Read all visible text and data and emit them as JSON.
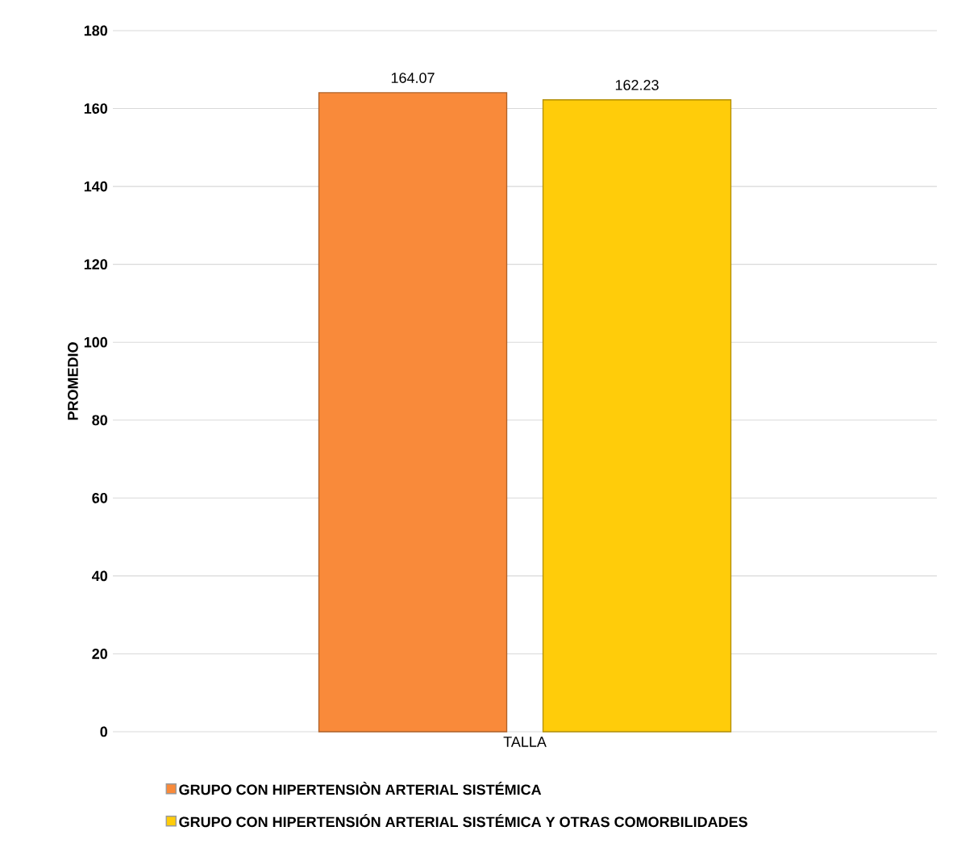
{
  "chart_data": {
    "type": "bar",
    "ylabel": "PROMEDIO",
    "categories": [
      "TALLA"
    ],
    "series": [
      {
        "name": "GRUPO CON HIPERTENSIÒN ARTERIAL SISTÉMICA",
        "color": "#f98a3a",
        "values": [
          164.07
        ],
        "value_labels": [
          "164.07"
        ]
      },
      {
        "name": "GRUPO CON HIPERTENSIÓN ARTERIAL SISTÉMICA Y OTRAS COMORBILIDADES",
        "color": "#ffcc0a",
        "values": [
          162.23
        ],
        "value_labels": [
          "162.23"
        ]
      }
    ],
    "ylim": [
      0,
      180
    ],
    "yticks": [
      0,
      20,
      40,
      60,
      80,
      100,
      120,
      140,
      160,
      180
    ],
    "grid": "y",
    "legend": "bottom"
  }
}
